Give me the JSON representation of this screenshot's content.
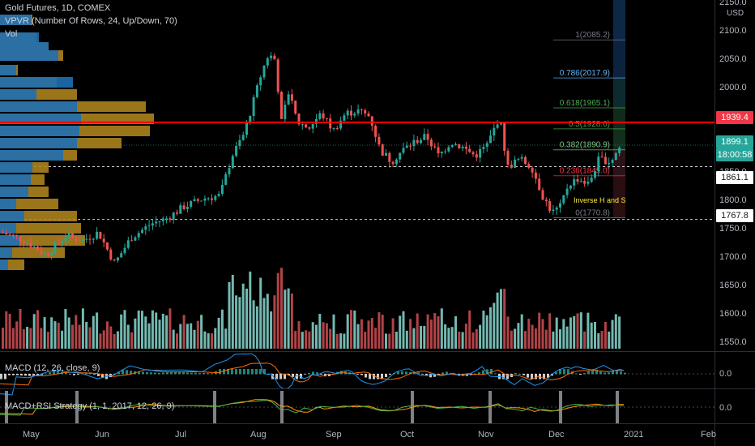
{
  "legend": {
    "symbol": "Gold Futures, 1D, COMEX",
    "vpvr": "VPVR (Number Of Rows, 24, Up/Down, 70)",
    "vol": "Vol",
    "macd": "MACD (12, 26, close, 9)",
    "strategy": "MACD+RSI Strategy (1, 1, 2017, 12, 26, 9)"
  },
  "price_axis": {
    "currency": "USD",
    "ticks": [
      "2150.0",
      "2100.0",
      "2050.0",
      "2000.0",
      "1950.0",
      "1900.0",
      "1850.0",
      "1800.0",
      "1750.0",
      "1700.0",
      "1650.0",
      "1600.0",
      "1550.0"
    ],
    "tick_values": [
      2150,
      2100,
      2050,
      2000,
      1950,
      1900,
      1850,
      1800,
      1750,
      1700,
      1650,
      1600,
      1550
    ],
    "macd_zero": "0.0",
    "strategy_zero": "0.0",
    "tags": {
      "resistance": "1939.4",
      "last": "1899.1",
      "countdown": "18:00:58",
      "mid": "1861.1",
      "support": "1767.8"
    }
  },
  "time_axis": [
    "May",
    "Jun",
    "Jul",
    "Aug",
    "Sep",
    "Oct",
    "Nov",
    "Dec",
    "2021",
    "Feb"
  ],
  "fib_levels": [
    {
      "label": "1(2085.2)",
      "value": 2085.2,
      "color": "#787b86"
    },
    {
      "label": "0.786(2017.9)",
      "value": 2017.9,
      "color": "#64b5f6"
    },
    {
      "label": "0.618(1965.1)",
      "value": 1965.1,
      "color": "#4caf50"
    },
    {
      "label": "0.5(1928.0)",
      "value": 1928.0,
      "color": "#4caf50"
    },
    {
      "label": "0.382(1890.9)",
      "value": 1890.9,
      "color": "#81c784"
    },
    {
      "label": "0.236(1845.0)",
      "value": 1845.0,
      "color": "#f23645"
    },
    {
      "label": "0(1770.8)",
      "value": 1770.8,
      "color": "#787b86"
    }
  ],
  "annotation": "Inverse H and S",
  "colors": {
    "up": "#26a69a",
    "down": "#ef5350",
    "vol_up": "#7fcdc4",
    "vol_down": "#c44a4f",
    "resistance": "#ff0000",
    "vpvr_up": "#1f6fb2",
    "vpvr_down": "#b58a1e",
    "macd_line": "#2196f3",
    "signal_line": "#ff6d00",
    "annotation": "#ffeb3b"
  }
}
